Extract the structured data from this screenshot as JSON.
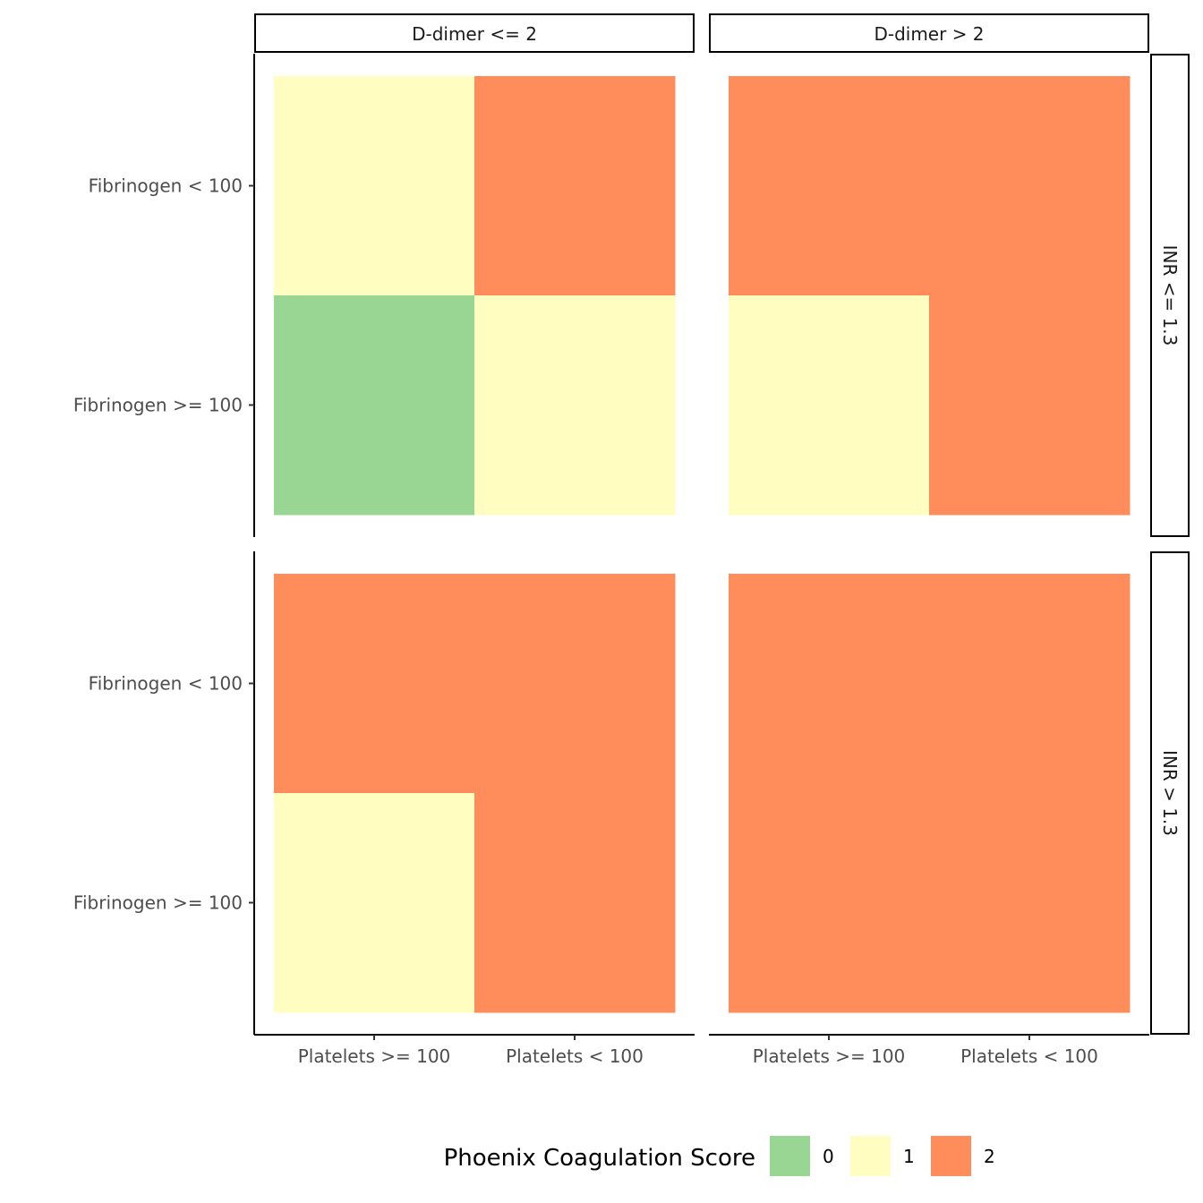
{
  "chart_data": {
    "type": "heatmap",
    "facet_cols": [
      "D-dimer <= 2",
      "D-dimer > 2"
    ],
    "facet_rows": [
      "INR <= 1.3",
      "INR > 1.3"
    ],
    "x_categories": [
      "Platelets >= 100",
      "Platelets < 100"
    ],
    "y_categories": [
      "Fibrinogen < 100",
      "Fibrinogen >= 100"
    ],
    "panels": [
      {
        "col": 0,
        "row": 0,
        "values": [
          [
            1,
            2
          ],
          [
            0,
            1
          ]
        ]
      },
      {
        "col": 1,
        "row": 0,
        "values": [
          [
            2,
            2
          ],
          [
            1,
            2
          ]
        ]
      },
      {
        "col": 0,
        "row": 1,
        "values": [
          [
            2,
            2
          ],
          [
            1,
            2
          ]
        ]
      },
      {
        "col": 1,
        "row": 1,
        "values": [
          [
            2,
            2
          ],
          [
            2,
            2
          ]
        ]
      }
    ],
    "legend": {
      "title": "Phoenix Coagulation Score",
      "position": "bottom",
      "levels": [
        {
          "label": "0",
          "color": "#9AD693"
        },
        {
          "label": "1",
          "color": "#FFFEC0"
        },
        {
          "label": "2",
          "color": "#FE8D5B"
        }
      ]
    },
    "grid": false
  }
}
